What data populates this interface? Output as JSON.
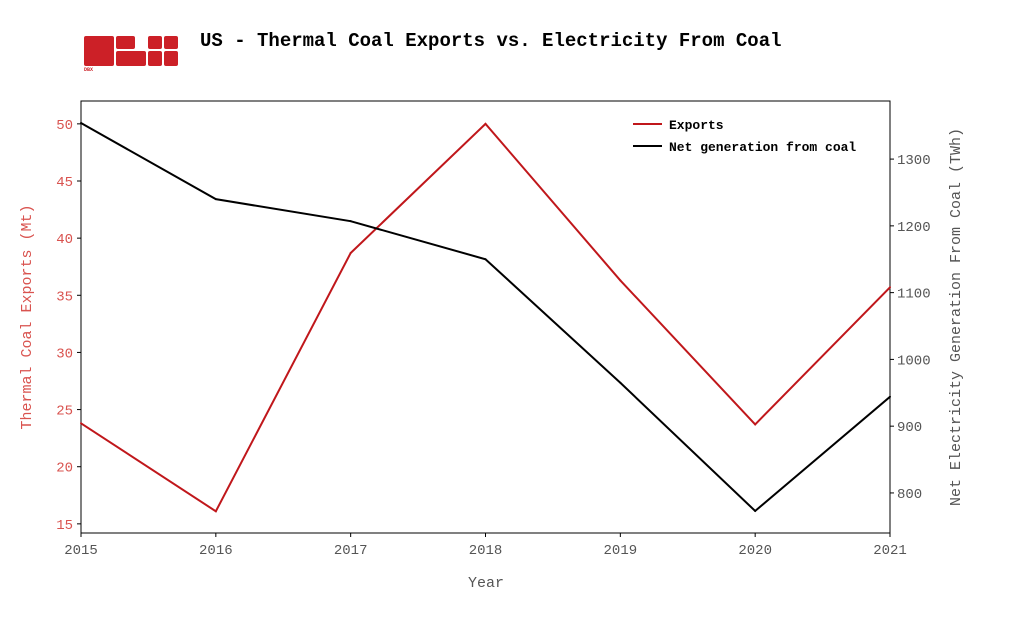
{
  "logo": {
    "text": "DBX",
    "color": "#cc2027"
  },
  "chart_data": {
    "type": "line",
    "title": "US - Thermal Coal Exports vs. Electricity From Coal",
    "xlabel": "Year",
    "ylabel_left": "Thermal Coal Exports (Mt)",
    "ylabel_right": "Net Electricity Generation From Coal (TWh)",
    "x": [
      2015,
      2016,
      2017,
      2018,
      2019,
      2020,
      2021
    ],
    "xticks": [
      "2015",
      "2016",
      "2017",
      "2018",
      "2019",
      "2020",
      "2021"
    ],
    "ylim_left": [
      14.2,
      52
    ],
    "yticks_left": [
      "15",
      "20",
      "25",
      "30",
      "35",
      "40",
      "45",
      "50"
    ],
    "ylim_right": [
      740,
      1387
    ],
    "yticks_right": [
      "800",
      "900",
      "1000",
      "1100",
      "1200",
      "1300"
    ],
    "grid": false,
    "legend": "top-right",
    "series": [
      {
        "name": "Exports",
        "axis": "left",
        "color": "#c0171b",
        "values": [
          23.8,
          16.1,
          38.7,
          50.0,
          36.3,
          23.7,
          35.7
        ]
      },
      {
        "name": "Net generation from coal",
        "axis": "right",
        "color": "#000000",
        "values": [
          1354,
          1240,
          1207,
          1150,
          965,
          773,
          944
        ]
      }
    ],
    "left_axis_color": "#d9534f",
    "right_axis_color": "#555555"
  }
}
